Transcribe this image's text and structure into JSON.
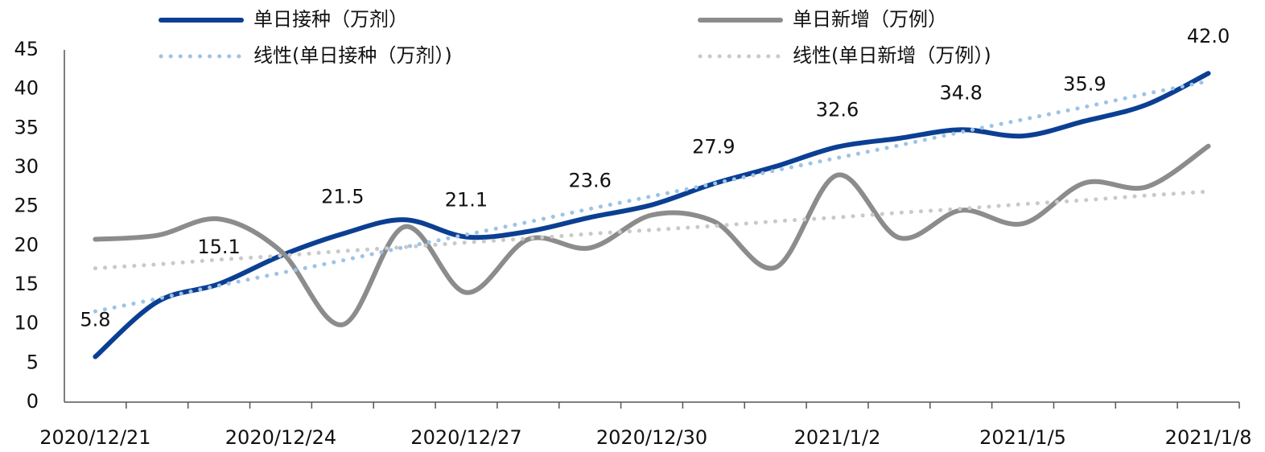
{
  "chart_data": {
    "type": "line",
    "categories": [
      "2020/12/21",
      null,
      null,
      "2020/12/24",
      null,
      null,
      "2020/12/27",
      null,
      null,
      "2020/12/30",
      null,
      null,
      "2021/1/2",
      null,
      null,
      "2021/1/5",
      null,
      null,
      "2021/1/8"
    ],
    "series": [
      {
        "name": "单日接种（万剂）",
        "color": "#0b3f93",
        "style": "solid",
        "values": [
          5.8,
          12.8,
          15.1,
          18.7,
          21.5,
          23.3,
          21.1,
          21.8,
          23.6,
          25.2,
          27.9,
          30.1,
          32.6,
          33.7,
          34.8,
          34.0,
          35.9,
          38.0,
          42.0
        ],
        "value_labels": [
          "5.8",
          null,
          "15.1",
          null,
          "21.5",
          null,
          "21.1",
          null,
          "23.6",
          null,
          "27.9",
          null,
          "32.6",
          null,
          "34.8",
          null,
          "35.9",
          null,
          "42.0"
        ]
      },
      {
        "name": "单日新增（万例）",
        "color": "#8c8c8c",
        "style": "solid",
        "values": [
          20.8,
          21.3,
          23.4,
          19.3,
          9.9,
          22.4,
          14.0,
          20.8,
          19.7,
          23.9,
          23.1,
          17.2,
          29.0,
          21.0,
          24.5,
          22.8,
          28.0,
          27.5,
          32.7
        ]
      },
      {
        "name": "线性(单日接种（万剂）)",
        "color": "#9dc3e6",
        "style": "dotted",
        "values": [
          11.6,
          13.2,
          14.9,
          16.5,
          18.1,
          19.8,
          21.4,
          23.0,
          24.7,
          26.3,
          27.9,
          29.6,
          31.2,
          32.8,
          34.5,
          36.1,
          37.7,
          39.4,
          41.0
        ]
      },
      {
        "name": "线性(单日新增（万例）)",
        "color": "#c9c9c9",
        "style": "dotted",
        "values": [
          17.1,
          17.6,
          18.2,
          18.7,
          19.3,
          19.8,
          20.4,
          20.9,
          21.5,
          22.0,
          22.5,
          23.1,
          23.6,
          24.2,
          24.7,
          25.3,
          25.8,
          26.4,
          26.9
        ]
      }
    ],
    "ylim": [
      0,
      45
    ],
    "yticks": [
      0,
      5,
      10,
      15,
      20,
      25,
      30,
      35,
      40,
      45
    ],
    "grid": false
  }
}
